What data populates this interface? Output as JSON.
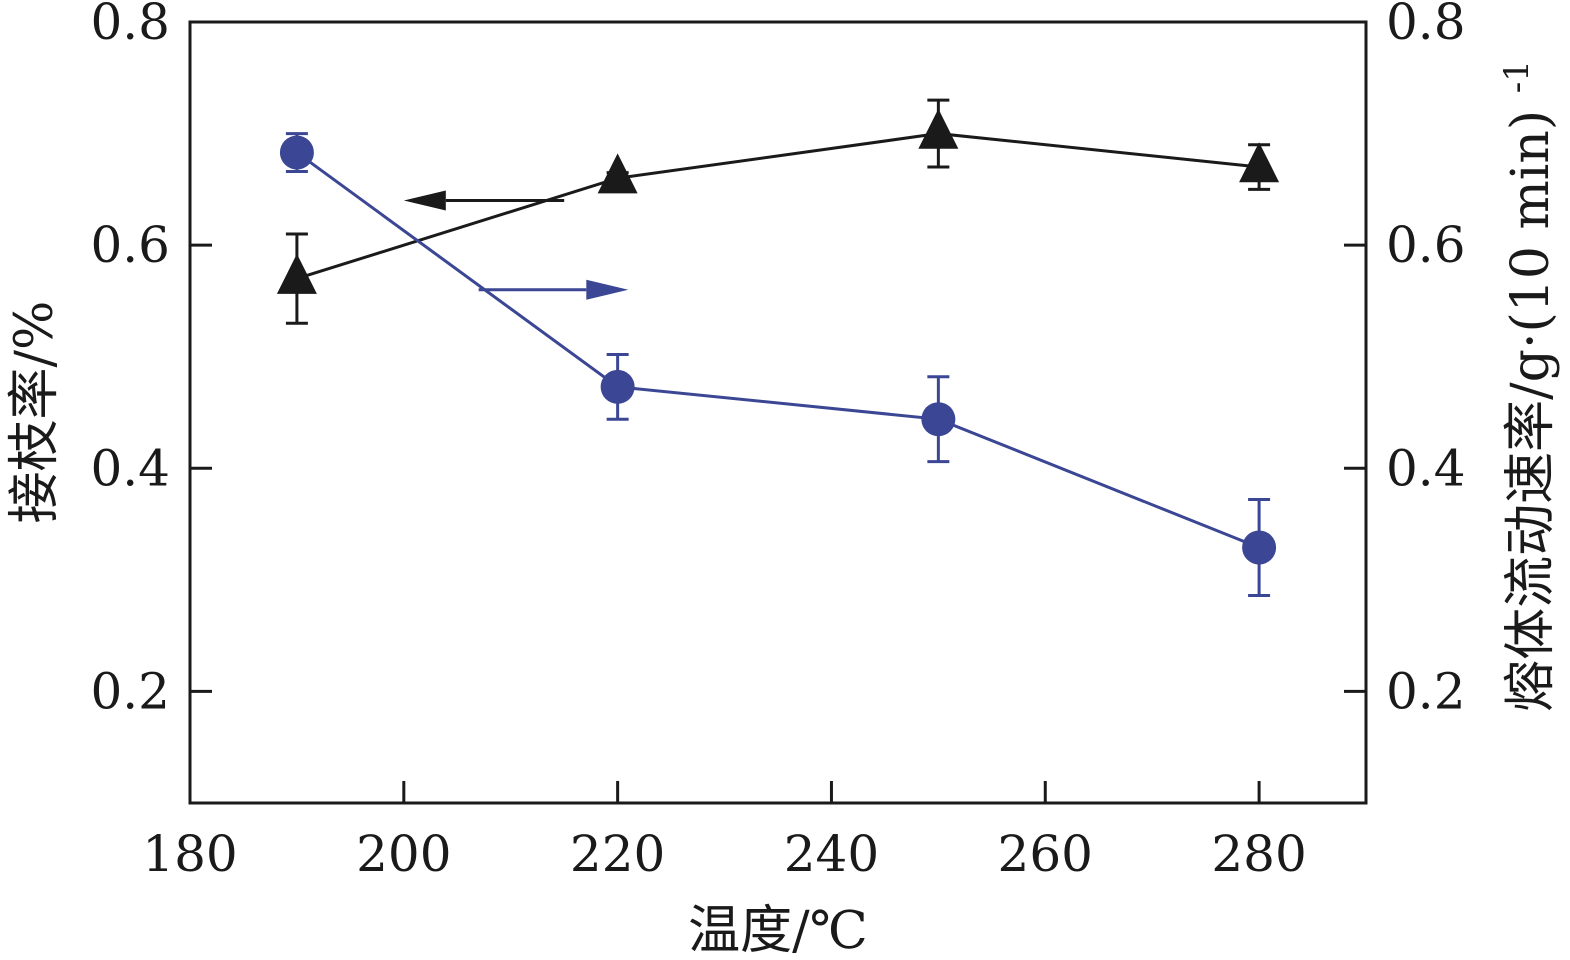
{
  "chart_data": {
    "type": "line",
    "xlabel": "温度/℃",
    "ylabel_left": "接枝率/%",
    "ylabel_right": "熔体流动速率/g·(10 min)",
    "ylabel_right_sup": "-1",
    "xlim": [
      180,
      290
    ],
    "ylim_left": [
      0.1,
      0.8
    ],
    "ylim_right": [
      0.1,
      0.8
    ],
    "x_ticks": [
      180,
      200,
      220,
      240,
      260,
      280
    ],
    "x_tick_labels": [
      "180",
      "200",
      "220",
      "240",
      "260",
      "280"
    ],
    "y_ticks": [
      0.2,
      0.4,
      0.6,
      0.8
    ],
    "y_tick_labels": [
      "0.2",
      "0.4",
      "0.6",
      "0.8"
    ],
    "grid": false,
    "series": [
      {
        "axis": "left",
        "marker": "triangle",
        "color": "#1a1a1a",
        "x": [
          190,
          220,
          250,
          280
        ],
        "y": [
          0.57,
          0.66,
          0.7,
          0.67
        ],
        "yerr": [
          0.04,
          0.005,
          0.03,
          0.02
        ]
      },
      {
        "axis": "right",
        "marker": "circle",
        "color": "#3b4694",
        "x": [
          190,
          220,
          250,
          280
        ],
        "y": [
          0.683,
          0.473,
          0.444,
          0.329
        ],
        "yerr": [
          0.017,
          0.029,
          0.038,
          0.043
        ]
      }
    ],
    "annotations": [
      {
        "type": "arrow",
        "direction": "left",
        "color": "#1a1a1a",
        "x_from": 215,
        "x_to": 200,
        "y": 0.64,
        "axis": "left"
      },
      {
        "type": "arrow",
        "direction": "right",
        "color": "#3b4694",
        "x_from": 207,
        "x_to": 221,
        "y": 0.56,
        "axis": "left"
      }
    ]
  }
}
